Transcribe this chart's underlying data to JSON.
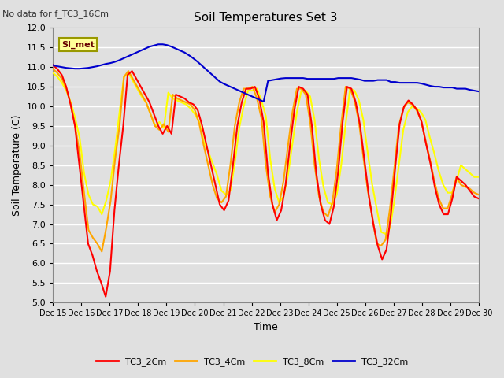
{
  "title": "Soil Temperatures Set 3",
  "subtitle": "No data for f_TC3_16Cm",
  "xlabel": "Time",
  "ylabel": "Soil Temperature (C)",
  "ylim": [
    5.0,
    12.0
  ],
  "yticks": [
    5.0,
    5.5,
    6.0,
    6.5,
    7.0,
    7.5,
    8.0,
    8.5,
    9.0,
    9.5,
    10.0,
    10.5,
    11.0,
    11.5,
    12.0
  ],
  "xtick_labels": [
    "Dec 15",
    "Dec 16",
    "Dec 17",
    "Dec 18",
    "Dec 19",
    "Dec 20",
    "Dec 21",
    "Dec 22",
    "Dec 23",
    "Dec 24",
    "Dec 25",
    "Dec 26",
    "Dec 27",
    "Dec 28",
    "Dec 29",
    "Dec 30"
  ],
  "legend_labels": [
    "TC3_2Cm",
    "TC3_4Cm",
    "TC3_8Cm",
    "TC3_32Cm"
  ],
  "legend_colors": [
    "#ff0000",
    "#ffa500",
    "#ffff00",
    "#0000cd"
  ],
  "annotation_text": "SI_met",
  "annotation_color": "#ffff99",
  "annotation_border": "#999900",
  "bg_color": "#e0e0e0",
  "plot_bg_color": "#e0e0e0",
  "grid_color": "#ffffff",
  "tc3_2cm": [
    11.05,
    10.95,
    10.8,
    10.5,
    10.05,
    9.5,
    8.5,
    7.5,
    6.5,
    6.2,
    5.8,
    5.5,
    5.15,
    5.8,
    7.35,
    8.5,
    9.5,
    10.8,
    10.9,
    10.7,
    10.5,
    10.3,
    10.1,
    9.8,
    9.5,
    9.3,
    9.5,
    9.3,
    10.3,
    10.25,
    10.2,
    10.1,
    10.05,
    9.9,
    9.5,
    9.0,
    8.5,
    8.0,
    7.5,
    7.35,
    7.6,
    8.5,
    9.5,
    10.1,
    10.45,
    10.45,
    10.5,
    10.2,
    9.6,
    8.3,
    7.5,
    7.1,
    7.35,
    8.0,
    9.0,
    9.9,
    10.5,
    10.45,
    10.3,
    9.5,
    8.3,
    7.5,
    7.1,
    7.0,
    7.45,
    8.35,
    9.6,
    10.5,
    10.45,
    10.1,
    9.5,
    8.6,
    7.7,
    7.0,
    6.45,
    6.1,
    6.35,
    7.25,
    8.45,
    9.55,
    10.0,
    10.15,
    10.05,
    9.9,
    9.6,
    9.05,
    8.55,
    7.95,
    7.5,
    7.25,
    7.25,
    7.65,
    8.2,
    8.1,
    8.0,
    7.85,
    7.7,
    7.65
  ],
  "tc3_4cm": [
    10.95,
    10.85,
    10.7,
    10.45,
    10.05,
    9.5,
    8.8,
    7.8,
    6.85,
    6.65,
    6.5,
    6.3,
    6.9,
    7.6,
    8.65,
    9.5,
    10.75,
    10.9,
    10.7,
    10.5,
    10.3,
    10.1,
    9.8,
    9.5,
    9.4,
    9.55,
    9.35,
    10.3,
    10.2,
    10.15,
    10.1,
    10.05,
    9.9,
    9.55,
    9.0,
    8.5,
    8.0,
    7.65,
    7.55,
    7.7,
    8.5,
    9.5,
    10.1,
    10.45,
    10.45,
    10.5,
    10.2,
    9.7,
    8.5,
    7.7,
    7.3,
    7.5,
    8.1,
    9.0,
    9.85,
    10.45,
    10.45,
    10.3,
    9.6,
    8.5,
    7.7,
    7.3,
    7.2,
    7.55,
    8.4,
    9.55,
    10.5,
    10.45,
    10.15,
    9.6,
    8.7,
    7.85,
    7.2,
    6.5,
    6.45,
    6.6,
    7.4,
    8.45,
    9.5,
    9.95,
    10.1,
    10.05,
    9.9,
    9.65,
    9.15,
    8.65,
    8.1,
    7.65,
    7.4,
    7.4,
    7.75,
    8.2,
    8.0,
    7.95,
    7.9,
    7.8,
    7.75
  ],
  "tc3_8cm": [
    10.85,
    10.75,
    10.6,
    10.4,
    10.1,
    9.7,
    9.2,
    8.3,
    7.75,
    7.5,
    7.45,
    7.25,
    7.6,
    8.1,
    8.9,
    9.85,
    10.75,
    10.85,
    10.65,
    10.45,
    10.25,
    10.1,
    9.8,
    9.5,
    9.6,
    9.45,
    10.35,
    10.2,
    10.15,
    10.1,
    10.05,
    9.95,
    9.8,
    9.6,
    9.1,
    8.85,
    8.55,
    8.25,
    7.85,
    7.75,
    7.85,
    8.55,
    9.45,
    10.0,
    10.4,
    10.4,
    10.45,
    10.15,
    9.75,
    8.65,
    7.9,
    7.55,
    7.7,
    8.25,
    9.05,
    9.85,
    10.4,
    10.4,
    10.25,
    9.65,
    8.65,
    7.95,
    7.55,
    7.5,
    7.75,
    8.5,
    9.55,
    10.45,
    10.4,
    10.15,
    9.65,
    8.8,
    8.0,
    7.4,
    6.8,
    6.75,
    6.9,
    7.6,
    8.5,
    9.4,
    9.85,
    10.0,
    9.95,
    9.85,
    9.65,
    9.2,
    8.8,
    8.35,
    8.0,
    7.8,
    7.8,
    8.1,
    8.5,
    8.4,
    8.3,
    8.2,
    8.2
  ],
  "tc3_32cm": [
    11.05,
    11.02,
    11.0,
    10.98,
    10.97,
    10.96,
    10.96,
    10.97,
    10.98,
    11.0,
    11.02,
    11.05,
    11.08,
    11.1,
    11.13,
    11.17,
    11.22,
    11.27,
    11.32,
    11.37,
    11.42,
    11.47,
    11.52,
    11.55,
    11.58,
    11.58,
    11.56,
    11.52,
    11.47,
    11.42,
    11.37,
    11.3,
    11.22,
    11.13,
    11.03,
    10.93,
    10.83,
    10.73,
    10.63,
    10.57,
    10.52,
    10.47,
    10.42,
    10.37,
    10.32,
    10.27,
    10.22,
    10.17,
    10.12,
    10.65,
    10.67,
    10.69,
    10.71,
    10.72,
    10.72,
    10.72,
    10.72,
    10.72,
    10.7,
    10.7,
    10.7,
    10.7,
    10.7,
    10.7,
    10.7,
    10.72,
    10.72,
    10.72,
    10.72,
    10.7,
    10.68,
    10.65,
    10.65,
    10.65,
    10.67,
    10.67,
    10.67,
    10.62,
    10.62,
    10.6,
    10.6,
    10.6,
    10.6,
    10.6,
    10.58,
    10.55,
    10.52,
    10.5,
    10.5,
    10.48,
    10.48,
    10.48,
    10.45,
    10.45,
    10.45,
    10.42,
    10.4,
    10.38
  ]
}
